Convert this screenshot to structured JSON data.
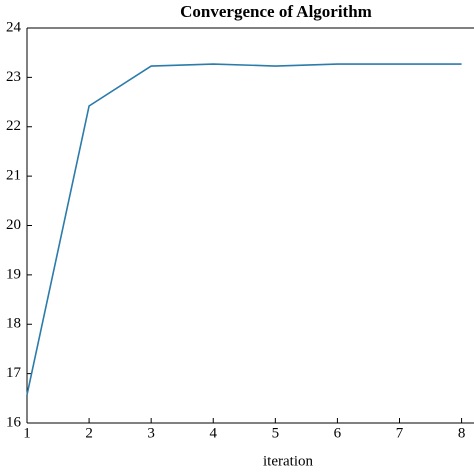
{
  "chart_data": {
    "type": "line",
    "title": "Convergence of Algorithm",
    "x_label": "iteration",
    "x": [
      1,
      2,
      3,
      4,
      5,
      6,
      7,
      8
    ],
    "series": [
      {
        "color": "#2b7bab",
        "values": [
          16.57,
          22.42,
          23.23,
          23.27,
          23.23,
          23.27,
          23.27,
          23.27
        ]
      }
    ],
    "xlim": [
      1,
      8.2
    ],
    "xticks": [
      1,
      2,
      3,
      4,
      5,
      6,
      7,
      8
    ],
    "ylim": [
      16,
      24
    ],
    "yticks": [
      16,
      17,
      18,
      19,
      20,
      21,
      22,
      23,
      24
    ]
  }
}
